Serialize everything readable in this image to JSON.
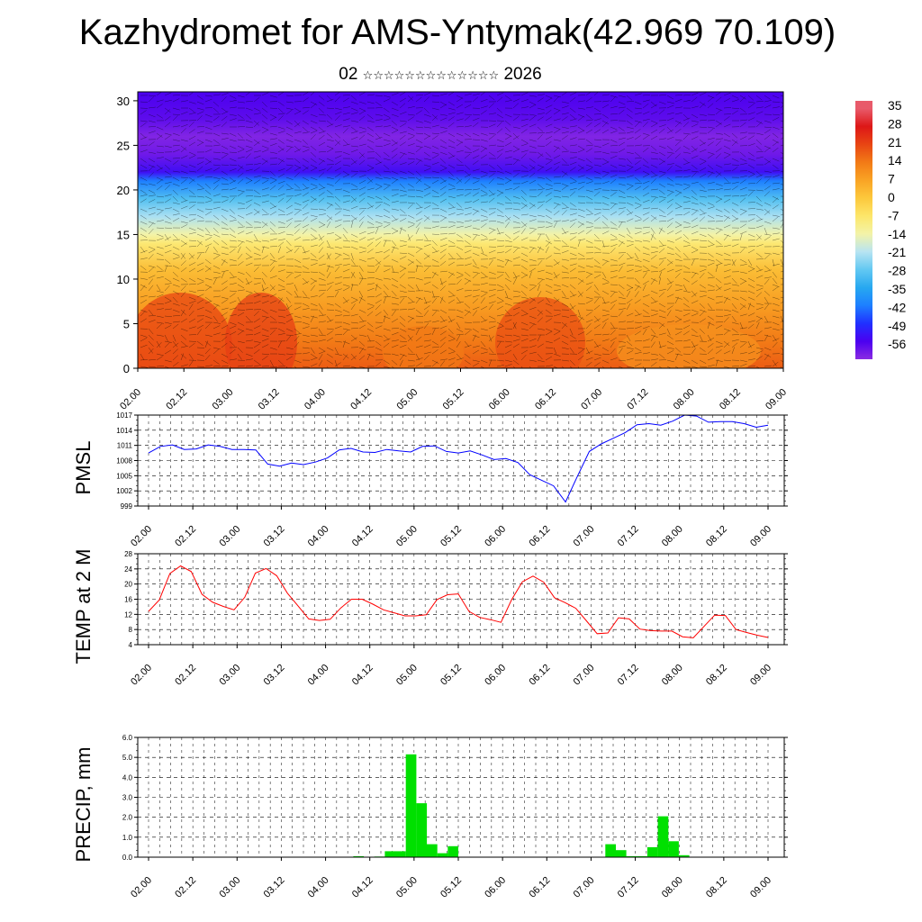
{
  "title": "Kazhydromet for AMS-Yntymak(42.969 70.109)",
  "subtitle": {
    "day": "02",
    "month_glyphs": "☆☆☆☆☆☆☆☆☆☆☆☆☆",
    "year": "2026"
  },
  "time_labels": [
    "02.00",
    "02.12",
    "03.00",
    "03.12",
    "04.00",
    "04.12",
    "05.00",
    "05.12",
    "06.00",
    "06.12",
    "07.00",
    "07.12",
    "08.00",
    "08.12",
    "09.00"
  ],
  "colors": {
    "pmsl": "#0000ff",
    "temp": "#ff0000",
    "precip": "#00e000"
  },
  "chart_data": [
    {
      "type": "heatmap",
      "name": "vertical-cross-section",
      "y_ticks": [
        "0",
        "5",
        "10",
        "15",
        "20",
        "25",
        "30"
      ],
      "ylim": [
        0,
        31
      ],
      "colorbar": {
        "labels": [
          "35",
          "28",
          "21",
          "14",
          "7",
          "0",
          "-7",
          "-14",
          "-21",
          "-28",
          "-35",
          "-42",
          "-49",
          "-56"
        ],
        "range": [
          -63,
          38
        ]
      },
      "level_temps": [
        {
          "level": 0,
          "value": 18
        },
        {
          "level": 3,
          "value": 14
        },
        {
          "level": 7,
          "value": 8
        },
        {
          "level": 11,
          "value": 2
        },
        {
          "level": 14,
          "value": -8
        },
        {
          "level": 15,
          "value": -14
        },
        {
          "level": 17,
          "value": -22
        },
        {
          "level": 19,
          "value": -30
        },
        {
          "level": 21,
          "value": -42
        },
        {
          "level": 22,
          "value": -54
        },
        {
          "level": 24,
          "value": -60
        },
        {
          "level": 26,
          "value": -62
        },
        {
          "level": 28,
          "value": -58
        },
        {
          "level": 31,
          "value": -56
        }
      ]
    },
    {
      "type": "line",
      "name": "PMSL",
      "ylabel": "PMSL",
      "y_ticks": [
        "1017",
        "1014",
        "1011",
        "1008",
        "1005",
        "1002",
        "999"
      ],
      "ylim": [
        999,
        1017
      ],
      "values": [
        1009.5,
        1010.8,
        1011.1,
        1010.2,
        1010.3,
        1011.1,
        1010.8,
        1010.2,
        1010.2,
        1010.1,
        1007.3,
        1006.9,
        1007.5,
        1007.2,
        1007.7,
        1008.5,
        1010.1,
        1010.4,
        1009.7,
        1009.6,
        1010.2,
        1009.9,
        1009.7,
        1010.8,
        1010.9,
        1009.8,
        1009.5,
        1009.9,
        1009.1,
        1008.2,
        1008.4,
        1007.6,
        1005.2,
        1004.1,
        1003.0,
        999.8,
        1004.9,
        1009.8,
        1011.3,
        1012.4,
        1013.5,
        1015.1,
        1015.3,
        1015.0,
        1015.8,
        1017.0,
        1016.8,
        1015.6,
        1015.7,
        1015.7,
        1015.3,
        1014.6,
        1015.0
      ]
    },
    {
      "type": "line",
      "name": "TEMP at 2 M",
      "ylabel": "TEMP at 2 M",
      "y_ticks": [
        "28",
        "24",
        "20",
        "16",
        "12",
        "8",
        "4"
      ],
      "ylim": [
        4,
        28
      ],
      "values": [
        12.8,
        15.8,
        22.8,
        24.8,
        23.3,
        17.3,
        15.2,
        14.1,
        13.2,
        16.5,
        22.9,
        24.1,
        22.2,
        17.6,
        14.2,
        10.8,
        10.4,
        10.7,
        13.7,
        16.0,
        16.0,
        14.7,
        13.2,
        12.4,
        11.6,
        11.6,
        11.9,
        15.9,
        17.2,
        17.4,
        12.8,
        11.2,
        10.6,
        9.9,
        15.9,
        20.6,
        22.1,
        20.5,
        16.4,
        15.1,
        13.6,
        10.3,
        6.9,
        7.1,
        11.1,
        10.8,
        8.1,
        7.7,
        7.6,
        7.6,
        6.1,
        5.8,
        8.8,
        11.8,
        11.7,
        8.0,
        7.2,
        6.5,
        5.9
      ]
    },
    {
      "type": "bar",
      "name": "PRECIP, mm",
      "ylabel": "PRECIP, mm",
      "y_ticks": [
        "6.0",
        "5.0",
        "4.0",
        "3.0",
        "2.0",
        "1.0",
        "0.0"
      ],
      "ylim": [
        0,
        6
      ],
      "values": [
        0,
        0,
        0,
        0,
        0,
        0,
        0,
        0,
        0,
        0,
        0,
        0,
        0,
        0,
        0,
        0,
        0,
        0,
        0,
        0,
        0.05,
        0,
        0.03,
        0.3,
        0.3,
        5.15,
        2.7,
        0.65,
        0.2,
        0.55,
        0,
        0,
        0,
        0,
        0,
        0,
        0,
        0,
        0,
        0,
        0,
        0,
        0,
        0,
        0.65,
        0.35,
        0.05,
        0.05,
        0.5,
        2.05,
        0.8,
        0.1,
        0,
        0,
        0,
        0,
        0,
        0,
        0,
        0
      ]
    }
  ]
}
